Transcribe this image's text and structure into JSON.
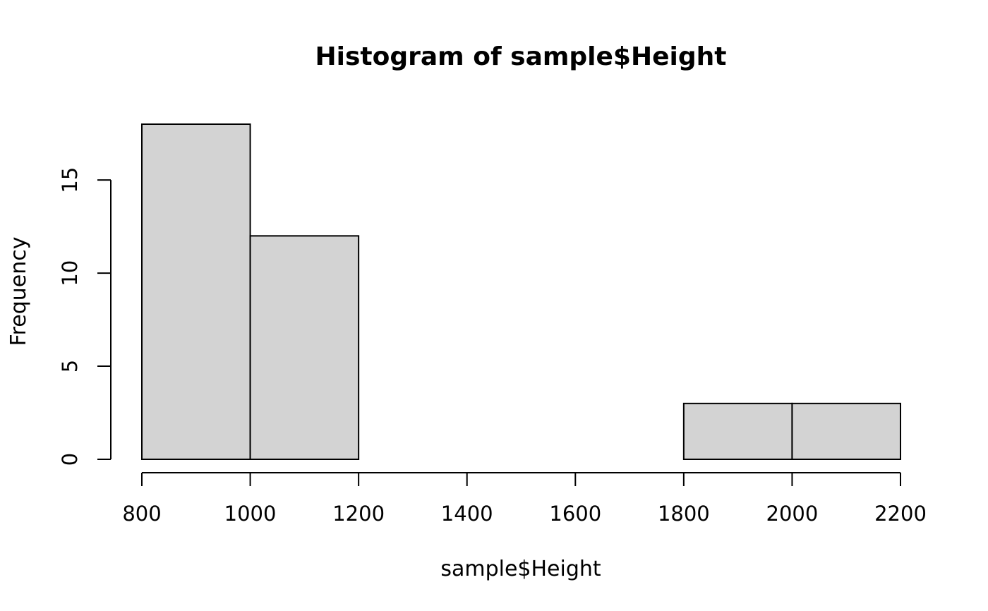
{
  "chart_data": {
    "type": "bar",
    "histogram": true,
    "title": "Histogram of sample$Height",
    "xlabel": "sample$Height",
    "ylabel": "Frequency",
    "bins": [
      {
        "start": 800,
        "end": 1000,
        "count": 18
      },
      {
        "start": 1000,
        "end": 1200,
        "count": 12
      },
      {
        "start": 1200,
        "end": 1400,
        "count": 0
      },
      {
        "start": 1400,
        "end": 1600,
        "count": 0
      },
      {
        "start": 1600,
        "end": 1800,
        "count": 0
      },
      {
        "start": 1800,
        "end": 2000,
        "count": 3
      },
      {
        "start": 2000,
        "end": 2200,
        "count": 3
      }
    ],
    "xlim": [
      800,
      2200
    ],
    "ylim": [
      0,
      18
    ],
    "x_ticks": [
      "800",
      "1000",
      "1200",
      "1400",
      "1600",
      "1800",
      "2000",
      "2200"
    ],
    "y_ticks": [
      "0",
      "5",
      "10",
      "15"
    ],
    "grid": false,
    "bar_color": "#d3d3d3",
    "edge_color": "#000000"
  }
}
